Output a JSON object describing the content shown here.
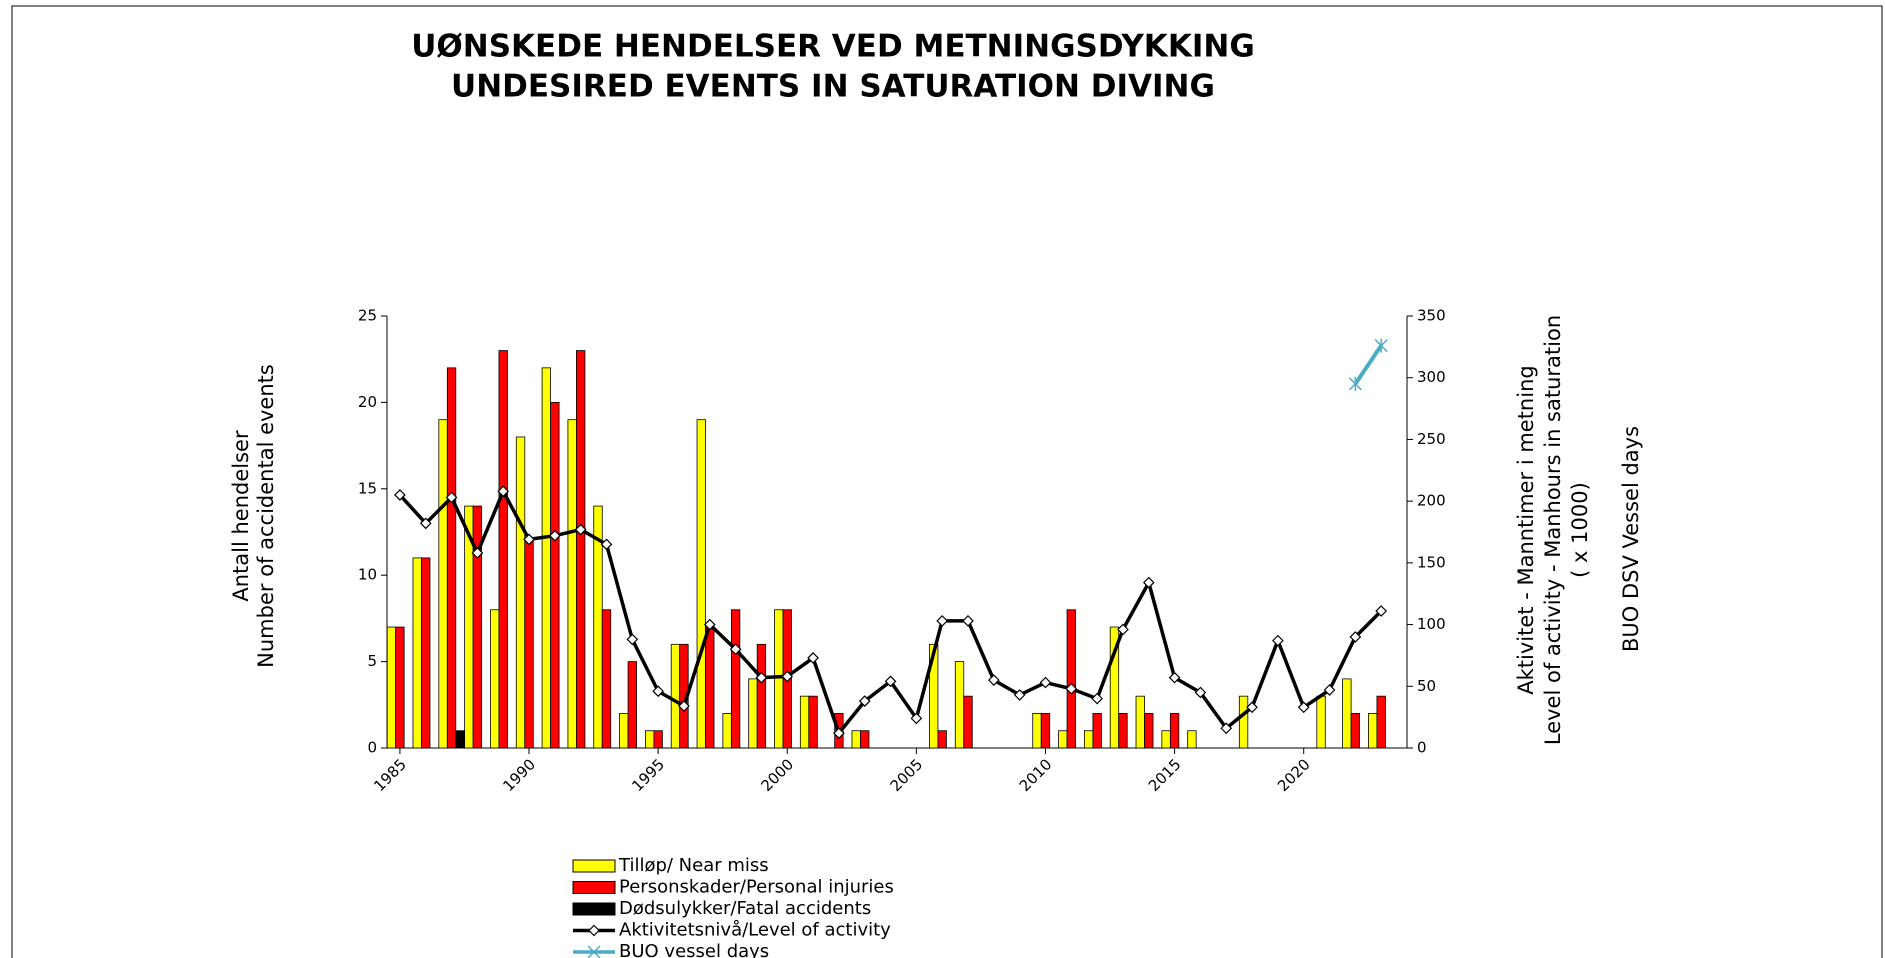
{
  "chart_data": {
    "type": "bar",
    "title": [
      "UØNSKEDE HENDELSER  VED METNINGSDYKKING",
      "UNDESIRED EVENTS IN SATURATION DIVING"
    ],
    "y_label": [
      "Antall hendelser",
      "Number of accidental events"
    ],
    "y2_label": [
      "Aktivitet - Manntimer i metning",
      "Level of activity - Manhours in saturation",
      "( x 1000)"
    ],
    "y3_label": "BUO DSV Vessel days",
    "x": [
      1985,
      1986,
      1987,
      1988,
      1989,
      1990,
      1991,
      1992,
      1993,
      1994,
      1995,
      1996,
      1997,
      1998,
      1999,
      2000,
      2001,
      2002,
      2003,
      2004,
      2005,
      2006,
      2007,
      2008,
      2009,
      2010,
      2011,
      2012,
      2013,
      2014,
      2015,
      2016,
      2017,
      2018,
      2019,
      2020,
      2021,
      2022,
      2023
    ],
    "xlim": [
      1984.5,
      2024
    ],
    "xticks": [
      1985,
      1990,
      1995,
      2000,
      2005,
      2010,
      2015,
      2020
    ],
    "ylim": [
      0,
      25
    ],
    "yticks": [
      0,
      5,
      10,
      15,
      20,
      25
    ],
    "y2lim": [
      0,
      350
    ],
    "y2ticks": [
      0,
      50,
      100,
      150,
      200,
      250,
      300,
      350
    ],
    "series": [
      {
        "name": "Tilløp/ Near miss",
        "kind": "bar",
        "color": "#ffff00",
        "values": [
          7,
          11,
          19,
          14,
          8,
          18,
          22,
          19,
          14,
          2,
          1,
          6,
          19,
          2,
          4,
          8,
          3,
          0,
          1,
          0,
          0,
          6,
          5,
          0,
          0,
          2,
          1,
          1,
          7,
          3,
          1,
          1,
          0,
          3,
          0,
          0,
          3,
          4,
          2
        ]
      },
      {
        "name": "Personskader/Personal injuries",
        "kind": "bar",
        "color": "#ff0000",
        "values": [
          7,
          11,
          22,
          14,
          23,
          12,
          20,
          23,
          8,
          5,
          1,
          6,
          7,
          8,
          6,
          8,
          3,
          2,
          1,
          0,
          0,
          1,
          3,
          0,
          0,
          2,
          8,
          2,
          2,
          2,
          2,
          0,
          0,
          0,
          0,
          0,
          0,
          2,
          3
        ]
      },
      {
        "name": "Dødsulykker/Fatal accidents",
        "kind": "bar",
        "color": "#000000",
        "values": [
          0,
          0,
          1,
          0,
          0,
          0,
          0,
          0,
          0,
          0,
          0,
          0,
          0,
          0,
          0,
          0,
          0,
          0,
          0,
          0,
          0,
          0,
          0,
          0,
          0,
          0,
          0,
          0,
          0,
          0,
          0,
          0,
          0,
          0,
          0,
          0,
          0,
          0,
          0
        ]
      },
      {
        "name": "Aktivitetsnivå/Level of activity",
        "kind": "line",
        "axis": "y2",
        "color": "#000000",
        "marker": "diamond",
        "values": [
          205,
          182,
          203,
          158,
          208,
          169,
          172,
          177,
          165,
          88,
          46,
          34,
          100,
          80,
          57,
          58,
          73,
          12,
          38,
          54,
          24,
          103,
          103,
          55,
          43,
          53,
          48,
          40,
          96,
          134,
          57,
          45,
          16,
          33,
          87,
          33,
          47,
          90,
          111
        ]
      },
      {
        "name": "BUO vessel days",
        "kind": "line",
        "axis": "y2",
        "color": "#4bacc6",
        "marker": "x",
        "values": [
          null,
          null,
          null,
          null,
          null,
          null,
          null,
          null,
          null,
          null,
          null,
          null,
          null,
          null,
          null,
          null,
          null,
          null,
          null,
          null,
          null,
          null,
          null,
          null,
          null,
          null,
          null,
          null,
          null,
          null,
          null,
          null,
          null,
          null,
          null,
          null,
          null,
          295,
          326
        ]
      }
    ]
  }
}
